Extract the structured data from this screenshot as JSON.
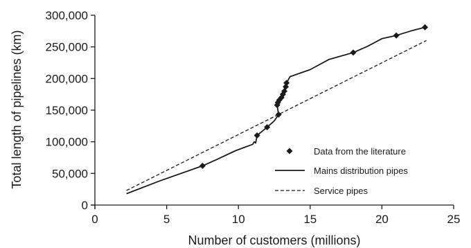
{
  "chart_data": {
    "type": "line",
    "title": "",
    "xlabel": "Number of customers (millions)",
    "ylabel": "Total length of pipelines (km)",
    "xlim": [
      0,
      25
    ],
    "ylim": [
      0,
      300000
    ],
    "x_ticks": [
      0,
      5,
      10,
      15,
      20,
      25
    ],
    "x_tick_labels": [
      "0",
      "5",
      "10",
      "15",
      "20",
      "25"
    ],
    "y_ticks": [
      0,
      50000,
      100000,
      150000,
      200000,
      250000,
      300000
    ],
    "y_tick_labels": [
      "0",
      "50,000",
      "100,000",
      "150,000",
      "200,000",
      "250,000",
      "300,000"
    ],
    "grid": false,
    "legend_position": "bottom-right",
    "series": [
      {
        "name": "Data from the literature",
        "style": "markers",
        "marker": "diamond",
        "color": "#1a1a1a",
        "points": [
          [
            7.5,
            62000
          ],
          [
            11.3,
            110000
          ],
          [
            12.0,
            123000
          ],
          [
            12.8,
            143000
          ],
          [
            12.7,
            158000
          ],
          [
            12.75,
            162000
          ],
          [
            12.85,
            166000
          ],
          [
            13.0,
            170000
          ],
          [
            13.1,
            175000
          ],
          [
            13.2,
            180000
          ],
          [
            13.3,
            187000
          ],
          [
            13.35,
            193000
          ],
          [
            18.0,
            241000
          ],
          [
            21.0,
            268000
          ],
          [
            23.0,
            281000
          ]
        ]
      },
      {
        "name": "Mains distribution pipes",
        "style": "solid",
        "color": "#1a1a1a",
        "points": [
          [
            2.2,
            18000
          ],
          [
            4.5,
            38000
          ],
          [
            7.5,
            62000
          ],
          [
            8.5,
            72000
          ],
          [
            9.8,
            86000
          ],
          [
            11.0,
            96000
          ],
          [
            11.1,
            100000
          ],
          [
            11.2,
            98000
          ],
          [
            11.3,
            110000
          ],
          [
            12.0,
            123000
          ],
          [
            12.5,
            133000
          ],
          [
            12.8,
            143000
          ],
          [
            12.7,
            158000
          ],
          [
            12.75,
            162000
          ],
          [
            12.85,
            166000
          ],
          [
            13.0,
            170000
          ],
          [
            13.1,
            175000
          ],
          [
            13.2,
            180000
          ],
          [
            13.3,
            187000
          ],
          [
            13.35,
            193000
          ],
          [
            13.6,
            203000
          ],
          [
            15.0,
            214000
          ],
          [
            16.3,
            230000
          ],
          [
            18.0,
            241000
          ],
          [
            19.0,
            251000
          ],
          [
            20.0,
            263000
          ],
          [
            21.0,
            268000
          ],
          [
            22.0,
            275000
          ],
          [
            23.0,
            281000
          ]
        ]
      },
      {
        "name": "Service pipes",
        "style": "dashed",
        "color": "#1a1a1a",
        "points": [
          [
            2.2,
            23000
          ],
          [
            23.1,
            260000
          ]
        ]
      }
    ]
  }
}
